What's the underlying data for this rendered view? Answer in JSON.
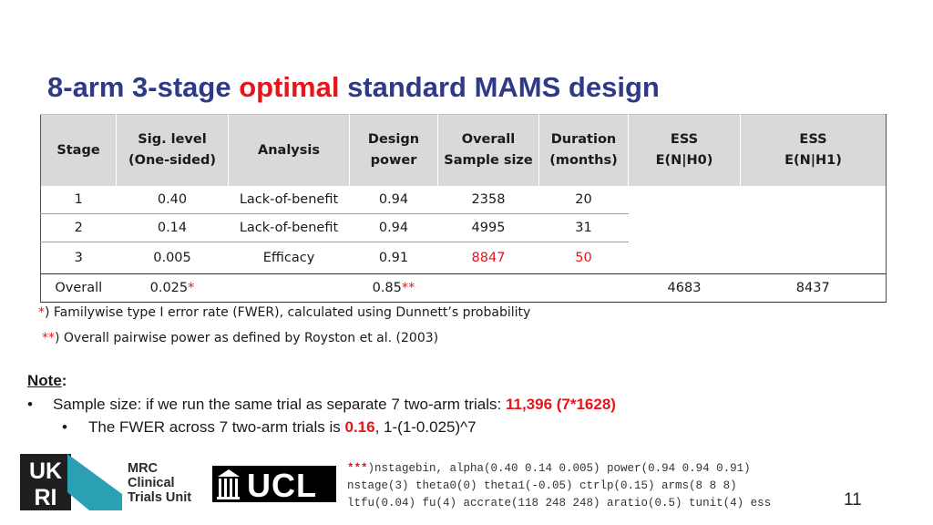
{
  "title": {
    "part1": "8-arm 3-stage ",
    "highlight": "optimal",
    "part2": " standard MAMS design"
  },
  "table": {
    "headers": {
      "stage": "Stage",
      "sig_line1": "Sig. level",
      "sig_line2": "(One-sided)",
      "analysis": "Analysis",
      "design_line1": "Design",
      "design_line2": "power",
      "overall_line1": "Overall",
      "overall_line2": "Sample size",
      "duration_line1": "Duration",
      "duration_line2": "(months)",
      "ess0_line1": "ESS",
      "ess0_line2": "E(N|H0)",
      "ess1_line1": "ESS",
      "ess1_line2": "E(N|H1)"
    },
    "rows": [
      {
        "stage": "1",
        "sig": "0.40",
        "analysis": "Lack-of-benefit",
        "power": "0.94",
        "sample": "2358",
        "duration": "20"
      },
      {
        "stage": "2",
        "sig": "0.14",
        "analysis": "Lack-of-benefit",
        "power": "0.94",
        "sample": "4995",
        "duration": "31"
      },
      {
        "stage": "3",
        "sig": "0.005",
        "analysis": "Efficacy",
        "power": "0.91",
        "sample": "8847",
        "duration": "50"
      }
    ],
    "overall": {
      "label": "Overall",
      "sig": "0.025",
      "sig_mark": "*",
      "power": "0.85",
      "power_mark": "**",
      "ess_h0": "4683",
      "ess_h1": "8437"
    }
  },
  "footnotes": {
    "f1_mark": "*",
    "f1_text": ") Familywise type I error rate (FWER), calculated using Dunnett’s probability",
    "f2_mark": "**",
    "f2_text": ") Overall pairwise power as defined by Royston et al. (2003)"
  },
  "note": {
    "label": "Note",
    "colon": ":",
    "bullet1_prefix": "Sample size: if we run the same trial as separate 7 two-arm trials: ",
    "bullet1_value": "11,396 (7*1628)",
    "bullet2_prefix": "The FWER across 7 two-arm trials is ",
    "bullet2_value": "0.16",
    "bullet2_suffix": ", 1-(1-0.025)^7"
  },
  "code": {
    "stars": "***",
    "line1": ")nstagebin, alpha(0.40 0.14 0.005) power(0.94 0.94 0.91)",
    "line2": "nstage(3) theta0(0) theta1(-0.05) ctrlp(0.15) arms(8 8 8)",
    "line3": "ltfu(0.04) fu(4) accrate(118 248 248) aratio(0.5) tunit(4) ess"
  },
  "logos": {
    "ukri": "UKRI",
    "mrc_line1": "MRC",
    "mrc_line2": "Clinical",
    "mrc_line3": "Trials Unit",
    "ucl": "UCL"
  },
  "page_number": "11",
  "colors": {
    "title": "#2e3a87",
    "accent_red": "#e8141a",
    "header_bg": "#d9d9d9",
    "ukri_teal": "#2b9fb3"
  }
}
